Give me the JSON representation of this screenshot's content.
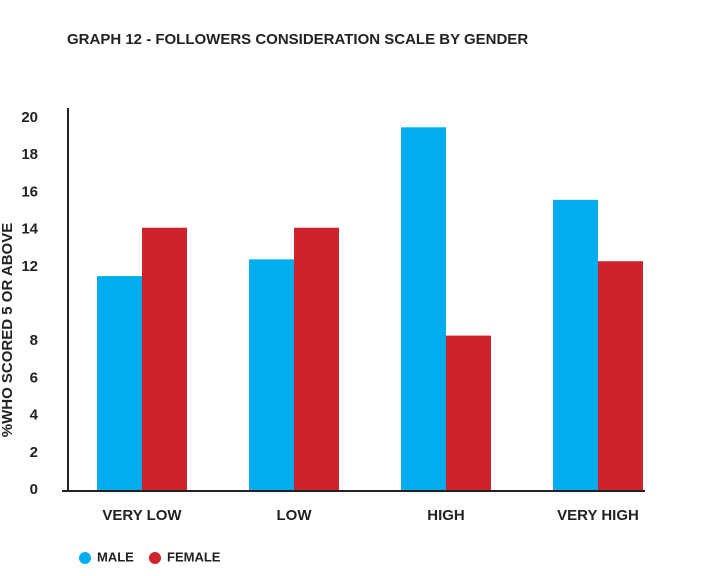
{
  "chart_data": {
    "type": "bar",
    "title": "GRAPH 12 - FOLLOWERS CONSIDERATION SCALE BY GENDER",
    "y_label": "%WHO SCORED 5 OR ABOVE",
    "categories": [
      "VERY LOW",
      "LOW",
      "HIGH",
      "VERY HIGH"
    ],
    "series": [
      {
        "name": "MALE",
        "color": "#00adef",
        "values": [
          11.5,
          12.4,
          19.5,
          15.6
        ]
      },
      {
        "name": "FEMALE",
        "color": "#d0222a",
        "values": [
          14.1,
          14.1,
          8.3,
          12.3
        ]
      }
    ],
    "ylim": [
      0,
      20
    ],
    "yticks": [
      0,
      2,
      4,
      6,
      8,
      12,
      14,
      16,
      18,
      20
    ],
    "grid": false
  }
}
